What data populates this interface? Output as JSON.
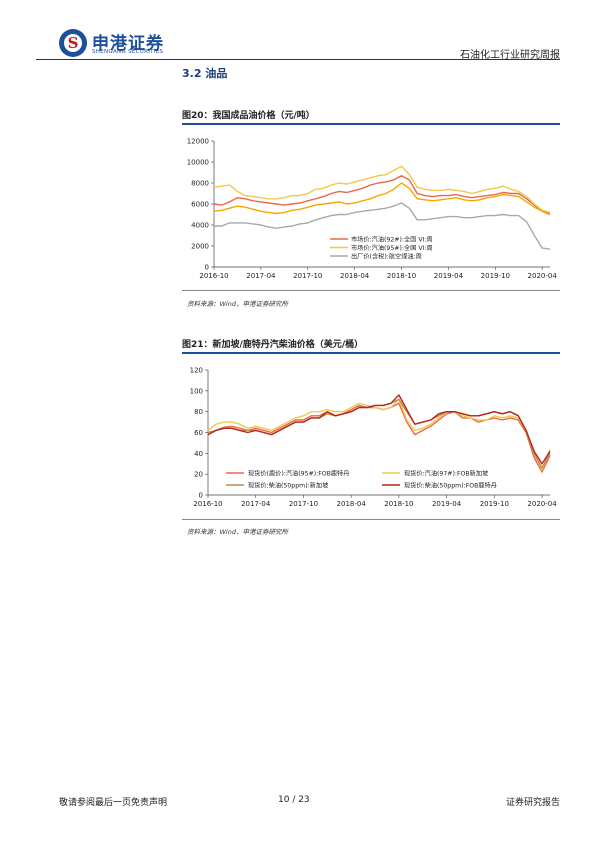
{
  "header": {
    "brand_cn": "申港证券",
    "brand_en": "SHENGANG SECURITIES",
    "report_type": "石油化工行业研究周报"
  },
  "section_title": "3.2 油品",
  "figures": [
    {
      "title": "图20：我国成品油价格（元/吨）",
      "source": "资料来源：Wind，申港证券研究所"
    },
    {
      "title": "图21：新加坡/鹿特丹汽柴油价格（美元/桶）",
      "source": "资料来源：Wind，申港证券研究所"
    }
  ],
  "chart_data": [
    {
      "type": "line",
      "title": "",
      "ylim": [
        0,
        12000
      ],
      "y_ticks": [
        "0",
        "2000",
        "4000",
        "6000",
        "8000",
        "10000",
        "12000"
      ],
      "x_ticks": [
        "2016-10",
        "2017-04",
        "2017-10",
        "2018-04",
        "2018-10",
        "2019-04",
        "2019-10",
        "2020-04"
      ],
      "x_range": [
        "2016-10",
        "2020-05"
      ],
      "legend_position": "center-right",
      "series": [
        {
          "name": "市场价:汽油(92#):全国 VI:周",
          "color": "#e8694a",
          "x": [
            "2016-10",
            "2016-11",
            "2016-12",
            "2017-01",
            "2017-02",
            "2017-03",
            "2017-04",
            "2017-05",
            "2017-06",
            "2017-07",
            "2017-08",
            "2017-09",
            "2017-10",
            "2017-11",
            "2017-12",
            "2018-01",
            "2018-02",
            "2018-03",
            "2018-04",
            "2018-05",
            "2018-06",
            "2018-07",
            "2018-08",
            "2018-09",
            "2018-10",
            "2018-11",
            "2018-12",
            "2019-01",
            "2019-02",
            "2019-03",
            "2019-04",
            "2019-05",
            "2019-06",
            "2019-07",
            "2019-08",
            "2019-09",
            "2019-10",
            "2019-11",
            "2019-12",
            "2020-01",
            "2020-02",
            "2020-03",
            "2020-04",
            "2020-05"
          ],
          "values": [
            6000,
            5900,
            6200,
            6600,
            6500,
            6300,
            6200,
            6100,
            6000,
            5900,
            6000,
            6100,
            6300,
            6500,
            6700,
            7000,
            7200,
            7100,
            7300,
            7500,
            7800,
            8000,
            8100,
            8300,
            8700,
            8300,
            7000,
            6800,
            6700,
            6800,
            6800,
            6900,
            6700,
            6600,
            6700,
            6800,
            6900,
            7100,
            7000,
            7000,
            6500,
            5900,
            5300,
            5000
          ]
        },
        {
          "name": "市场价:汽油(95#):全国 VI:周",
          "color": "#f2c94c",
          "x": [
            "2016-10",
            "2016-11",
            "2016-12",
            "2017-01",
            "2017-02",
            "2017-03",
            "2017-04",
            "2017-05",
            "2017-06",
            "2017-07",
            "2017-08",
            "2017-09",
            "2017-10",
            "2017-11",
            "2017-12",
            "2018-01",
            "2018-02",
            "2018-03",
            "2018-04",
            "2018-05",
            "2018-06",
            "2018-07",
            "2018-08",
            "2018-09",
            "2018-10",
            "2018-11",
            "2018-12",
            "2019-01",
            "2019-02",
            "2019-03",
            "2019-04",
            "2019-05",
            "2019-06",
            "2019-07",
            "2019-08",
            "2019-09",
            "2019-10",
            "2019-11",
            "2019-12",
            "2020-01",
            "2020-02",
            "2020-03",
            "2020-04",
            "2020-05"
          ],
          "values": [
            7600,
            7700,
            7800,
            7200,
            6800,
            6700,
            6600,
            6500,
            6500,
            6600,
            6800,
            6800,
            7000,
            7400,
            7500,
            7800,
            8000,
            7900,
            8100,
            8300,
            8500,
            8700,
            8800,
            9200,
            9600,
            8800,
            7600,
            7400,
            7300,
            7300,
            7400,
            7300,
            7200,
            7000,
            7200,
            7400,
            7500,
            7700,
            7400,
            7200,
            6700,
            6000,
            5400,
            5200
          ]
        },
        {
          "name": "市场价:汽油(95#):全国 VI:周",
          "color": "#f7a800",
          "x": [
            "2016-10",
            "2016-11",
            "2016-12",
            "2017-01",
            "2017-02",
            "2017-03",
            "2017-04",
            "2017-05",
            "2017-06",
            "2017-07",
            "2017-08",
            "2017-09",
            "2017-10",
            "2017-11",
            "2017-12",
            "2018-01",
            "2018-02",
            "2018-03",
            "2018-04",
            "2018-05",
            "2018-06",
            "2018-07",
            "2018-08",
            "2018-09",
            "2018-10",
            "2018-11",
            "2018-12",
            "2019-01",
            "2019-02",
            "2019-03",
            "2019-04",
            "2019-05",
            "2019-06",
            "2019-07",
            "2019-08",
            "2019-09",
            "2019-10",
            "2019-11",
            "2019-12",
            "2020-01",
            "2020-02",
            "2020-03",
            "2020-04",
            "2020-05"
          ],
          "values": [
            5300,
            5400,
            5600,
            5800,
            5700,
            5500,
            5300,
            5200,
            5100,
            5200,
            5400,
            5500,
            5700,
            5900,
            6000,
            6100,
            6200,
            6000,
            6100,
            6300,
            6500,
            6800,
            7000,
            7400,
            8000,
            7500,
            6500,
            6400,
            6300,
            6400,
            6500,
            6600,
            6400,
            6300,
            6400,
            6600,
            6700,
            6900,
            6800,
            6700,
            6200,
            5700,
            5300,
            5100
          ]
        },
        {
          "name": "出厂价(含税):航空煤油:周",
          "color": "#a9a9a9",
          "x": [
            "2016-10",
            "2016-11",
            "2016-12",
            "2017-01",
            "2017-02",
            "2017-03",
            "2017-04",
            "2017-05",
            "2017-06",
            "2017-07",
            "2017-08",
            "2017-09",
            "2017-10",
            "2017-11",
            "2017-12",
            "2018-01",
            "2018-02",
            "2018-03",
            "2018-04",
            "2018-05",
            "2018-06",
            "2018-07",
            "2018-08",
            "2018-09",
            "2018-10",
            "2018-11",
            "2018-12",
            "2019-01",
            "2019-02",
            "2019-03",
            "2019-04",
            "2019-05",
            "2019-06",
            "2019-07",
            "2019-08",
            "2019-09",
            "2019-10",
            "2019-11",
            "2019-12",
            "2020-01",
            "2020-02",
            "2020-03",
            "2020-04",
            "2020-05"
          ],
          "values": [
            3900,
            3900,
            4200,
            4200,
            4200,
            4100,
            4000,
            3800,
            3700,
            3800,
            3900,
            4100,
            4200,
            4500,
            4700,
            4900,
            5000,
            5000,
            5200,
            5300,
            5400,
            5500,
            5600,
            5800,
            6100,
            5600,
            4500,
            4500,
            4600,
            4700,
            4800,
            4800,
            4700,
            4700,
            4800,
            4900,
            4900,
            5000,
            4900,
            4900,
            4300,
            3000,
            1800,
            1700
          ]
        }
      ]
    },
    {
      "type": "line",
      "title": "",
      "ylim": [
        0,
        120
      ],
      "y_ticks": [
        "0",
        "20",
        "40",
        "60",
        "80",
        "100",
        "120"
      ],
      "x_ticks": [
        "2016-10",
        "2017-04",
        "2017-10",
        "2018-04",
        "2018-10",
        "2019-04",
        "2019-10",
        "2020-04"
      ],
      "x_range": [
        "2016-10",
        "2020-05"
      ],
      "legend_position": "bottom",
      "series": [
        {
          "name": "现货价(鹿价):汽油(95#):FOB鹿特丹",
          "color": "#e8694a",
          "x": [
            "2016-10",
            "2016-11",
            "2016-12",
            "2017-01",
            "2017-02",
            "2017-03",
            "2017-04",
            "2017-05",
            "2017-06",
            "2017-07",
            "2017-08",
            "2017-09",
            "2017-10",
            "2017-11",
            "2017-12",
            "2018-01",
            "2018-02",
            "2018-03",
            "2018-04",
            "2018-05",
            "2018-06",
            "2018-07",
            "2018-08",
            "2018-09",
            "2018-10",
            "2018-11",
            "2018-12",
            "2019-01",
            "2019-02",
            "2019-03",
            "2019-04",
            "2019-05",
            "2019-06",
            "2019-07",
            "2019-08",
            "2019-09",
            "2019-10",
            "2019-11",
            "2019-12",
            "2020-01",
            "2020-02",
            "2020-03",
            "2020-04",
            "2020-05"
          ],
          "values": [
            58,
            62,
            65,
            66,
            64,
            62,
            64,
            62,
            60,
            64,
            68,
            72,
            72,
            76,
            76,
            80,
            76,
            78,
            82,
            86,
            84,
            84,
            82,
            84,
            88,
            70,
            58,
            62,
            66,
            72,
            78,
            80,
            74,
            74,
            70,
            72,
            74,
            72,
            74,
            72,
            60,
            36,
            22,
            38
          ]
        },
        {
          "name": "现货价:汽油(97#):FOB新加坡",
          "color": "#f2c94c",
          "x": [
            "2016-10",
            "2016-11",
            "2016-12",
            "2017-01",
            "2017-02",
            "2017-03",
            "2017-04",
            "2017-05",
            "2017-06",
            "2017-07",
            "2017-08",
            "2017-09",
            "2017-10",
            "2017-11",
            "2017-12",
            "2018-01",
            "2018-02",
            "2018-03",
            "2018-04",
            "2018-05",
            "2018-06",
            "2018-07",
            "2018-08",
            "2018-09",
            "2018-10",
            "2018-11",
            "2018-12",
            "2019-01",
            "2019-02",
            "2019-03",
            "2019-04",
            "2019-05",
            "2019-06",
            "2019-07",
            "2019-08",
            "2019-09",
            "2019-10",
            "2019-11",
            "2019-12",
            "2020-01",
            "2020-02",
            "2020-03",
            "2020-04",
            "2020-05"
          ],
          "values": [
            62,
            68,
            70,
            70,
            68,
            64,
            66,
            64,
            62,
            66,
            70,
            74,
            76,
            80,
            80,
            82,
            80,
            80,
            84,
            88,
            86,
            84,
            82,
            84,
            92,
            72,
            62,
            64,
            68,
            74,
            80,
            80,
            76,
            74,
            72,
            72,
            76,
            74,
            76,
            74,
            62,
            40,
            24,
            44
          ]
        },
        {
          "name": "现货价:柴油(50ppm):新加坡",
          "color": "#c08a50",
          "x": [
            "2016-10",
            "2016-11",
            "2016-12",
            "2017-01",
            "2017-02",
            "2017-03",
            "2017-04",
            "2017-05",
            "2017-06",
            "2017-07",
            "2017-08",
            "2017-09",
            "2017-10",
            "2017-11",
            "2017-12",
            "2018-01",
            "2018-02",
            "2018-03",
            "2018-04",
            "2018-05",
            "2018-06",
            "2018-07",
            "2018-08",
            "2018-09",
            "2018-10",
            "2018-11",
            "2018-12",
            "2019-01",
            "2019-02",
            "2019-03",
            "2019-04",
            "2019-05",
            "2019-06",
            "2019-07",
            "2019-08",
            "2019-09",
            "2019-10",
            "2019-11",
            "2019-12",
            "2020-01",
            "2020-02",
            "2020-03",
            "2020-04",
            "2020-05"
          ],
          "values": [
            60,
            62,
            64,
            64,
            62,
            62,
            62,
            60,
            58,
            62,
            66,
            70,
            70,
            74,
            74,
            78,
            76,
            78,
            80,
            84,
            84,
            86,
            86,
            88,
            92,
            80,
            68,
            70,
            72,
            76,
            80,
            80,
            78,
            76,
            76,
            78,
            80,
            78,
            80,
            76,
            62,
            40,
            26,
            40
          ]
        },
        {
          "name": "现货价:柴油(50ppm):FOB鹿特丹",
          "color": "#b02a1e",
          "x": [
            "2016-10",
            "2016-11",
            "2016-12",
            "2017-01",
            "2017-02",
            "2017-03",
            "2017-04",
            "2017-05",
            "2017-06",
            "2017-07",
            "2017-08",
            "2017-09",
            "2017-10",
            "2017-11",
            "2017-12",
            "2018-01",
            "2018-02",
            "2018-03",
            "2018-04",
            "2018-05",
            "2018-06",
            "2018-07",
            "2018-08",
            "2018-09",
            "2018-10",
            "2018-11",
            "2018-12",
            "2019-01",
            "2019-02",
            "2019-03",
            "2019-04",
            "2019-05",
            "2019-06",
            "2019-07",
            "2019-08",
            "2019-09",
            "2019-10",
            "2019-11",
            "2019-12",
            "2020-01",
            "2020-02",
            "2020-03",
            "2020-04",
            "2020-05"
          ],
          "values": [
            58,
            62,
            64,
            64,
            62,
            60,
            62,
            60,
            58,
            62,
            66,
            70,
            70,
            74,
            74,
            80,
            76,
            78,
            80,
            84,
            84,
            86,
            86,
            88,
            96,
            82,
            68,
            70,
            72,
            78,
            80,
            80,
            78,
            76,
            76,
            78,
            80,
            78,
            80,
            76,
            62,
            42,
            30,
            42
          ]
        }
      ]
    }
  ],
  "footer": {
    "disclaimer": "敬请参阅最后一页免责声明",
    "page": "10 / 23",
    "report_label": "证券研究报告"
  }
}
